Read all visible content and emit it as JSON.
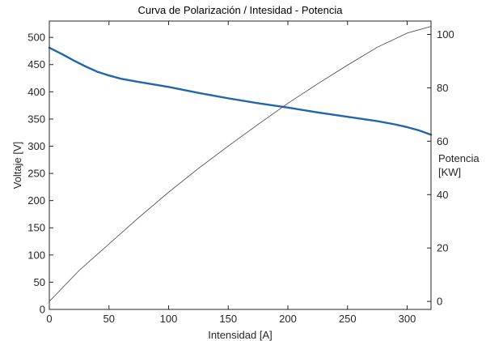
{
  "chart_data": {
    "type": "line",
    "title": "Curva de Polarización / Intesidad - Potencia",
    "xlabel": "Intensidad [A]",
    "ylabel": "Voltaje [V]",
    "y2label_line1": "Potencia",
    "y2label_line2": "[KW]",
    "xlim": [
      0,
      320
    ],
    "ylim": [
      0,
      530
    ],
    "y2lim": [
      -3,
      105
    ],
    "xticks": [
      0,
      50,
      100,
      150,
      200,
      250,
      300
    ],
    "yticks": [
      0,
      50,
      100,
      150,
      200,
      250,
      300,
      350,
      400,
      450,
      500
    ],
    "y2ticks": [
      0,
      20,
      40,
      60,
      80,
      100
    ],
    "grid": false,
    "colors": {
      "voltage": "#2166ac",
      "power": "#404040",
      "axes": "#262626"
    },
    "series": [
      {
        "axis": "left",
        "x": [
          0,
          10,
          20,
          30,
          40,
          50,
          60,
          75,
          100,
          125,
          150,
          175,
          200,
          225,
          250,
          275,
          290,
          300,
          310,
          320
        ],
        "values": [
          481,
          470,
          458,
          447,
          437,
          430,
          424,
          418,
          409,
          398,
          388,
          379,
          371,
          362,
          354,
          346,
          340,
          335,
          329,
          321
        ]
      },
      {
        "axis": "right",
        "x": [
          0,
          25,
          50,
          75,
          100,
          125,
          150,
          175,
          200,
          225,
          250,
          275,
          300,
          320
        ],
        "values": [
          0,
          11.6,
          21.5,
          31.4,
          40.9,
          49.8,
          58.2,
          66.3,
          74.2,
          81.5,
          88.5,
          95.2,
          100.5,
          103
        ]
      }
    ]
  }
}
